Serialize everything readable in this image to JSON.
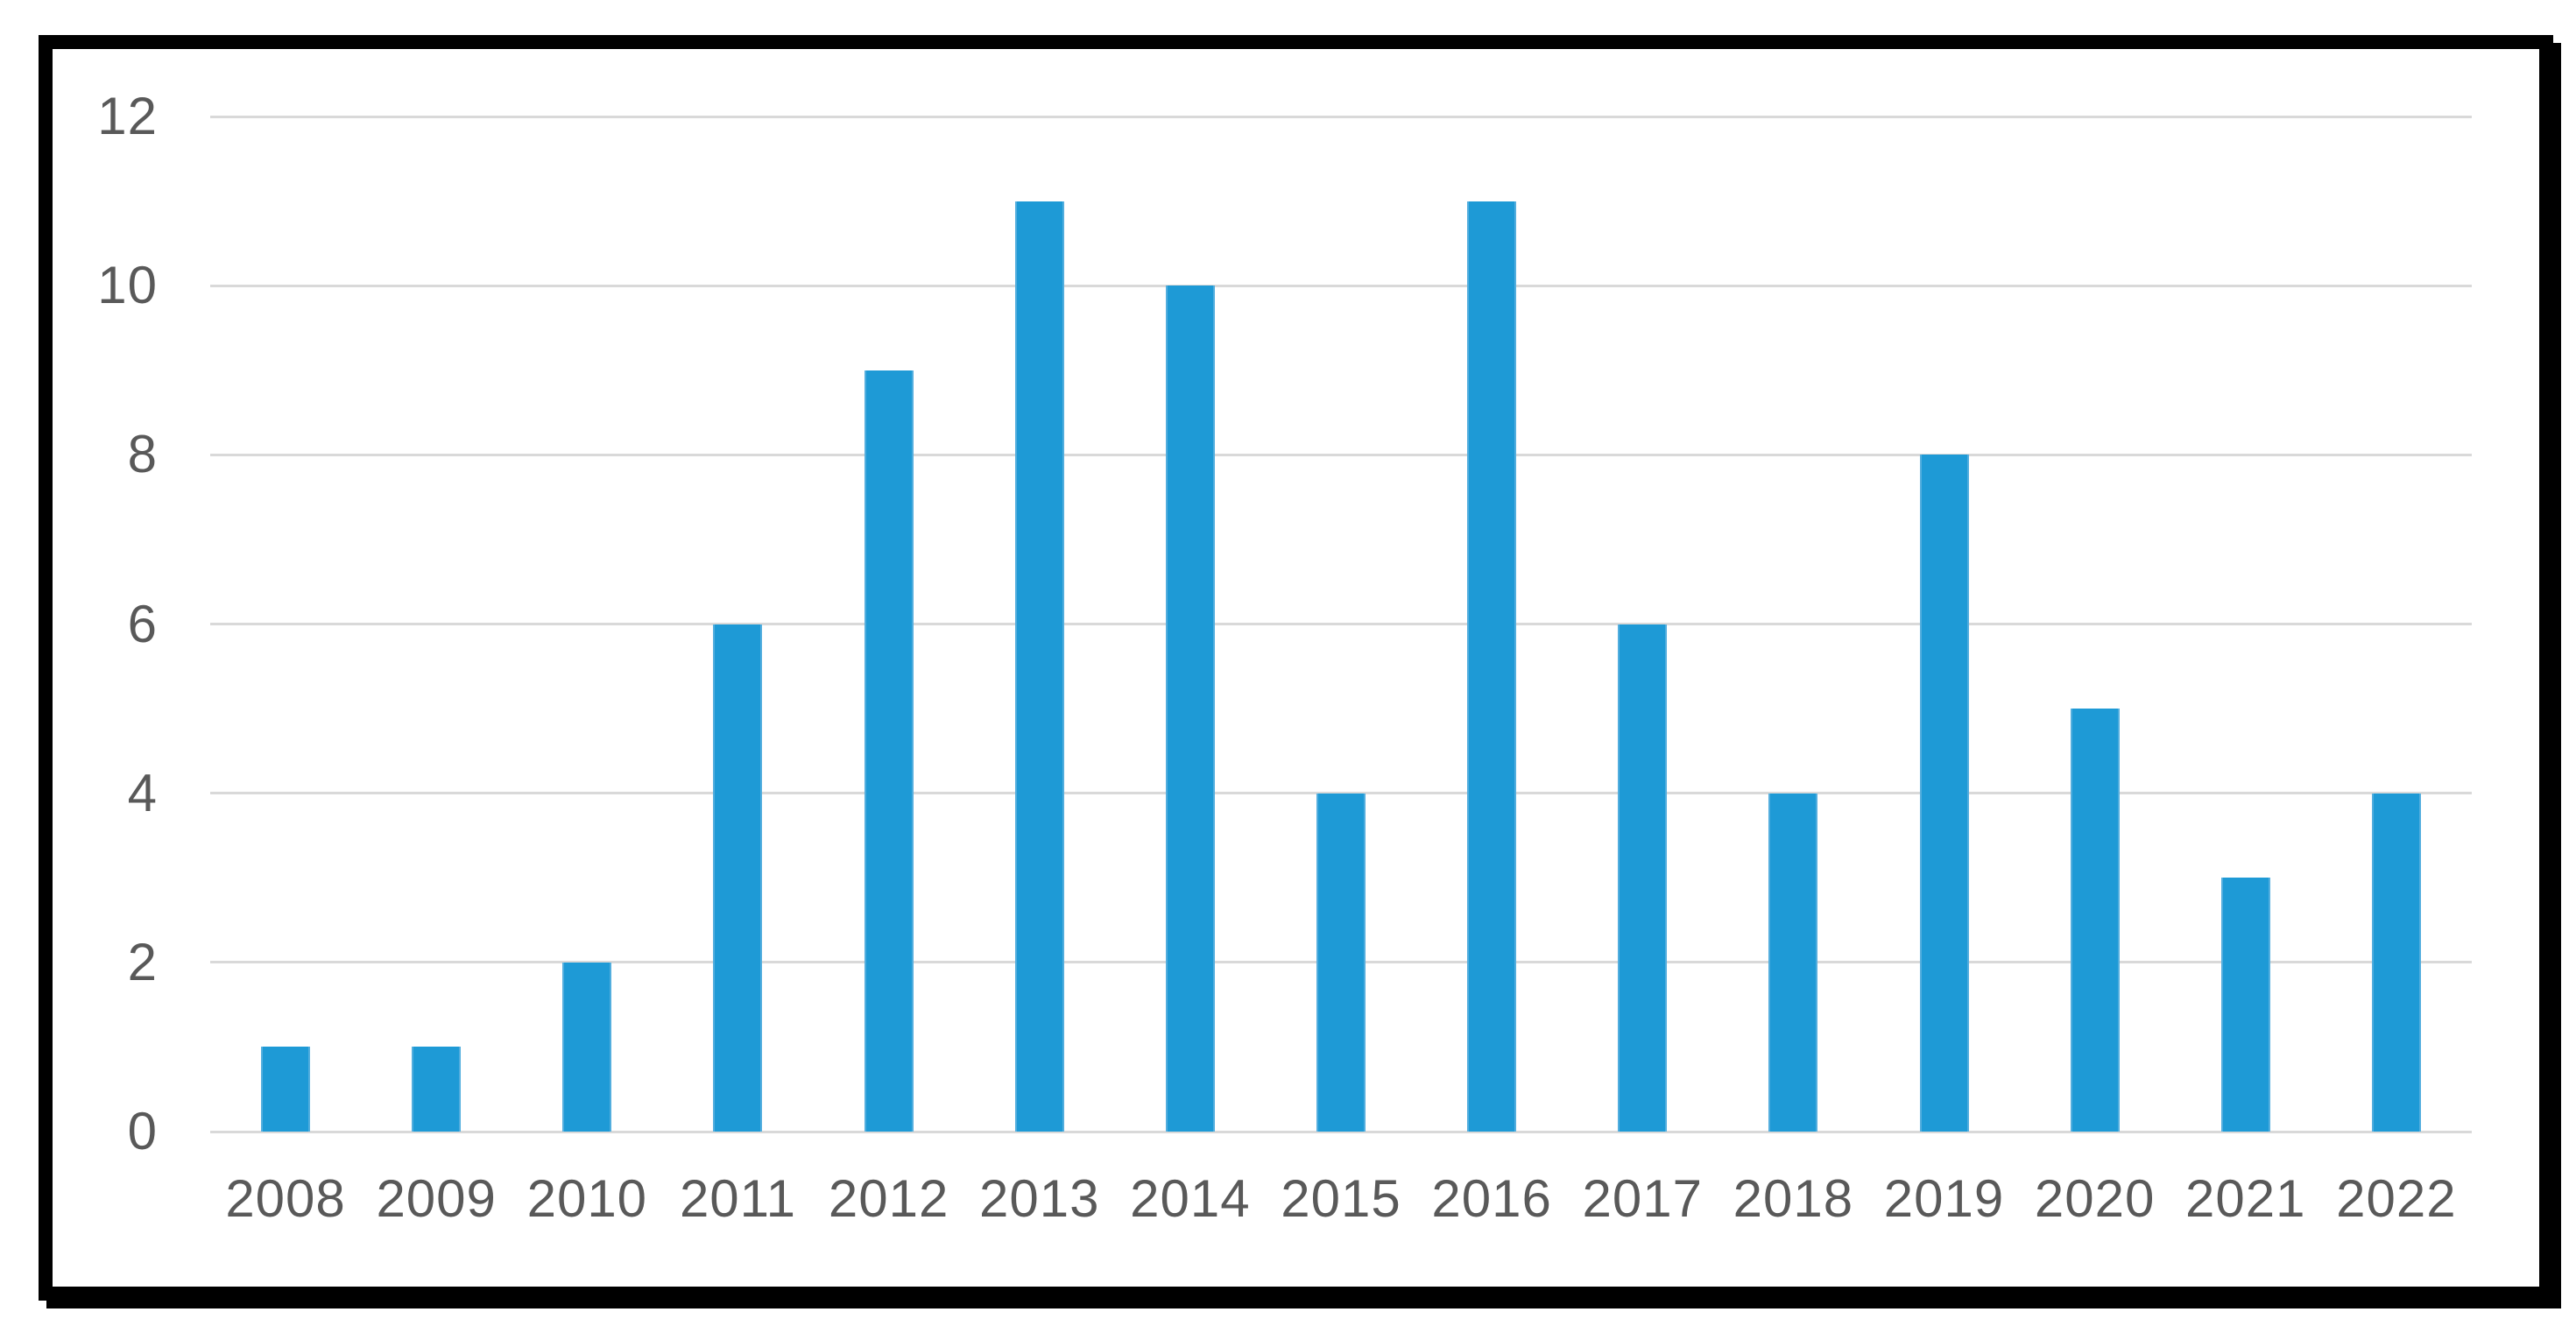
{
  "chart_data": {
    "type": "bar",
    "categories": [
      "2008",
      "2009",
      "2010",
      "2011",
      "2012",
      "2013",
      "2014",
      "2015",
      "2016",
      "2017",
      "2018",
      "2019",
      "2020",
      "2021",
      "2022"
    ],
    "values": [
      1,
      1,
      2,
      6,
      9,
      11,
      10,
      4,
      11,
      6,
      4,
      8,
      5,
      3,
      4
    ],
    "title": "",
    "xlabel": "",
    "ylabel": "",
    "ylim": [
      0,
      12
    ],
    "yticks": [
      0,
      2,
      4,
      6,
      8,
      10,
      12
    ],
    "grid": true,
    "legend": false,
    "colors": {
      "bar": "#1e9ad6",
      "bar_edge": "#53aede",
      "gridline": "#d9d9d9",
      "tick_text": "#595959",
      "frame_border": "#000000",
      "background": "#ffffff"
    }
  }
}
